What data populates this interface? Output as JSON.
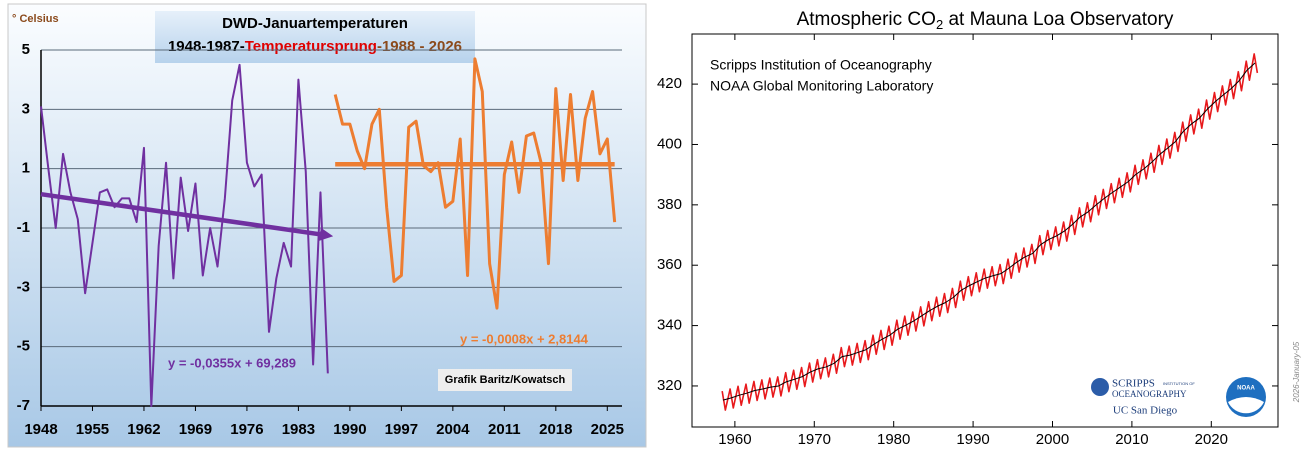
{
  "chart_data": [
    {
      "type": "line",
      "title": "DWD-Januartemperaturen",
      "subtitle_parts": [
        "1948-1987-",
        "Temperatursprung",
        "-1988 - 2026"
      ],
      "y_label": "° Celsius",
      "annotations": [
        "y = -0,0355x + 69,289",
        "y = -0,0008x + 2,8144",
        "Grafik Baritz/Kowatsch"
      ],
      "xlim": [
        1948,
        2027
      ],
      "xticks": [
        1948,
        1955,
        1962,
        1969,
        1976,
        1983,
        1990,
        1997,
        2004,
        2011,
        2018,
        2025
      ],
      "ylim": [
        -7,
        5
      ],
      "yticks": [
        -7,
        -5,
        -3,
        -1,
        1,
        3,
        5
      ],
      "grid": true,
      "series": [
        {
          "color": "#7030a0",
          "line_width": 2,
          "x": [
            1948,
            1949,
            1950,
            1951,
            1952,
            1953,
            1954,
            1955,
            1956,
            1957,
            1958,
            1959,
            1960,
            1961,
            1962,
            1963,
            1964,
            1965,
            1966,
            1967,
            1968,
            1969,
            1970,
            1971,
            1972,
            1973,
            1974,
            1975,
            1976,
            1977,
            1978,
            1979,
            1980,
            1981,
            1982,
            1983,
            1984,
            1985,
            1986,
            1987
          ],
          "values": [
            3.1,
            1.0,
            -1.0,
            1.5,
            0.2,
            -0.7,
            -3.2,
            -1.5,
            0.2,
            0.3,
            -0.3,
            0.0,
            0.0,
            -0.8,
            1.7,
            -7.0,
            -1.6,
            1.2,
            -2.7,
            0.7,
            -1.1,
            0.5,
            -2.6,
            -1.0,
            -2.3,
            0.0,
            3.3,
            4.5,
            1.2,
            0.4,
            0.8,
            -4.5,
            -2.7,
            -1.5,
            -2.3,
            4.0,
            0.9,
            -5.6,
            0.2,
            -5.9
          ]
        },
        {
          "color": "#ed7d31",
          "line_width": 3,
          "x": [
            1988,
            1989,
            1990,
            1991,
            1992,
            1993,
            1994,
            1995,
            1996,
            1997,
            1998,
            1999,
            2000,
            2001,
            2002,
            2003,
            2004,
            2005,
            2006,
            2007,
            2008,
            2009,
            2010,
            2011,
            2012,
            2013,
            2014,
            2015,
            2016,
            2017,
            2018,
            2019,
            2020,
            2021,
            2022,
            2023,
            2024,
            2025,
            2026
          ],
          "values": [
            3.5,
            2.5,
            2.5,
            1.6,
            1.0,
            2.5,
            3.0,
            -0.3,
            -2.8,
            -2.6,
            2.4,
            2.6,
            1.1,
            0.9,
            1.2,
            -0.3,
            -0.1,
            2.0,
            -2.6,
            4.7,
            3.6,
            -2.2,
            -3.7,
            0.8,
            1.9,
            0.2,
            2.1,
            2.2,
            1.2,
            -2.2,
            3.7,
            0.6,
            3.5,
            0.6,
            2.7,
            3.6,
            1.5,
            2.0,
            -0.8
          ]
        }
      ],
      "trendlines": [
        {
          "color": "#7030a0",
          "x": [
            1948,
            1987
          ],
          "values": [
            0.14,
            -1.25
          ],
          "arrow": true
        },
        {
          "color": "#ed7d31",
          "x": [
            1988,
            2026
          ],
          "values": [
            1.15,
            1.15
          ],
          "arrow": false
        }
      ]
    },
    {
      "type": "line",
      "title_parts": [
        "Atmospheric CO",
        "2",
        " at Mauna Loa Observatory"
      ],
      "sources": [
        "Scripps Institution of Oceanography",
        "NOAA Global Monitoring Laboratory"
      ],
      "date_label": "2026-January-05",
      "logos": {
        "scripps": "SCRIPPS",
        "institution": "INSTITUTION OF",
        "oceanography": "OCEANOGRAPHY",
        "ucsd": "UC San Diego",
        "noaa": "NOAA"
      },
      "xlim": [
        1954.6,
        2028.4
      ],
      "xticks": [
        1960,
        1970,
        1980,
        1990,
        2000,
        2010,
        2020
      ],
      "ylim": [
        306.4,
        436.6
      ],
      "yticks": [
        320,
        340,
        360,
        380,
        400,
        420
      ],
      "grid": false,
      "series": [
        {
          "color": "#e8191c",
          "line_width": 1.6,
          "x": [
            1958.4,
            1958.8,
            1959.4,
            1959.8,
            1960.4,
            1960.8,
            1961.4,
            1961.8,
            1962.4,
            1962.8,
            1963.4,
            1963.8,
            1964.4,
            1964.8,
            1965.4,
            1965.8,
            1966.4,
            1966.8,
            1967.4,
            1967.8,
            1968.4,
            1968.8,
            1969.4,
            1969.8,
            1970.4,
            1970.8,
            1971.4,
            1971.8,
            1972.4,
            1972.8,
            1973.4,
            1973.8,
            1974.4,
            1974.8,
            1975.4,
            1975.8,
            1976.4,
            1976.8,
            1977.4,
            1977.8,
            1978.4,
            1978.8,
            1979.4,
            1979.8,
            1980.4,
            1980.8,
            1981.4,
            1981.8,
            1982.4,
            1982.8,
            1983.4,
            1983.8,
            1984.4,
            1984.8,
            1985.4,
            1985.8,
            1986.4,
            1986.8,
            1987.4,
            1987.8,
            1988.4,
            1988.8,
            1989.4,
            1989.8,
            1990.4,
            1990.8,
            1991.4,
            1991.8,
            1992.4,
            1992.8,
            1993.4,
            1993.8,
            1994.4,
            1994.8,
            1995.4,
            1995.8,
            1996.4,
            1996.8,
            1997.4,
            1997.8,
            1998.4,
            1998.8,
            1999.4,
            1999.8,
            2000.4,
            2000.8,
            2001.4,
            2001.8,
            2002.4,
            2002.8,
            2003.4,
            2003.8,
            2004.4,
            2004.8,
            2005.4,
            2005.8,
            2006.4,
            2006.8,
            2007.4,
            2007.8,
            2008.4,
            2008.8,
            2009.4,
            2009.8,
            2010.4,
            2010.8,
            2011.4,
            2011.8,
            2012.4,
            2012.8,
            2013.4,
            2013.8,
            2014.4,
            2014.8,
            2015.4,
            2015.8,
            2016.4,
            2016.8,
            2017.4,
            2017.8,
            2018.4,
            2018.8,
            2019.4,
            2019.8,
            2020.4,
            2020.8,
            2021.4,
            2021.8,
            2022.4,
            2022.8,
            2023.4,
            2023.8,
            2024.4,
            2024.8,
            2025.4,
            2025.8
          ],
          "values": [
            318.3,
            312.0,
            319.0,
            312.7,
            319.9,
            313.6,
            320.6,
            314.3,
            321.5,
            315.2,
            322.0,
            315.7,
            322.6,
            316.3,
            323.0,
            316.7,
            324.4,
            318.1,
            325.2,
            318.9,
            326.1,
            319.8,
            327.6,
            321.3,
            328.7,
            322.4,
            329.3,
            323.0,
            330.5,
            324.2,
            332.7,
            326.4,
            333.2,
            326.9,
            334.1,
            327.8,
            335.0,
            328.7,
            336.8,
            330.5,
            338.4,
            332.1,
            339.8,
            333.5,
            341.8,
            335.5,
            343.1,
            336.8,
            344.5,
            338.2,
            346.2,
            339.9,
            347.9,
            341.6,
            349.4,
            343.1,
            350.6,
            344.3,
            352.3,
            346.0,
            354.7,
            348.4,
            356.2,
            349.9,
            357.5,
            351.2,
            358.7,
            352.4,
            359.5,
            353.2,
            360.2,
            353.9,
            362.0,
            355.7,
            364.0,
            357.7,
            365.7,
            359.4,
            366.9,
            360.6,
            369.8,
            363.5,
            371.5,
            365.2,
            372.7,
            366.4,
            374.3,
            368.0,
            376.5,
            370.2,
            379.0,
            372.7,
            380.7,
            374.4,
            383.0,
            376.7,
            385.1,
            378.8,
            387.0,
            380.7,
            388.8,
            382.5,
            390.6,
            384.3,
            393.1,
            386.8,
            394.9,
            388.6,
            397.1,
            390.8,
            399.7,
            393.4,
            401.8,
            395.5,
            404.0,
            397.7,
            407.4,
            401.1,
            409.8,
            403.5,
            411.7,
            405.4,
            414.7,
            408.4,
            417.2,
            410.9,
            419.4,
            413.1,
            421.5,
            415.2,
            424.1,
            417.8,
            427.6,
            421.3,
            430.0,
            423.7
          ]
        },
        {
          "color": "#000000",
          "line_width": 1,
          "x": [
            1958.5,
            1959.5,
            1960.5,
            1961.5,
            1962.5,
            1963.5,
            1964.5,
            1965.5,
            1966.5,
            1967.5,
            1968.5,
            1969.5,
            1970.5,
            1971.5,
            1972.5,
            1973.5,
            1974.5,
            1975.5,
            1976.5,
            1977.5,
            1978.5,
            1979.5,
            1980.5,
            1981.5,
            1982.5,
            1983.5,
            1984.5,
            1985.5,
            1986.5,
            1987.5,
            1988.5,
            1989.5,
            1990.5,
            1991.5,
            1992.5,
            1993.5,
            1994.5,
            1995.5,
            1996.5,
            1997.5,
            1998.5,
            1999.5,
            2000.5,
            2001.5,
            2002.5,
            2003.5,
            2004.5,
            2005.5,
            2006.5,
            2007.5,
            2008.5,
            2009.5,
            2010.5,
            2011.5,
            2012.5,
            2013.5,
            2014.5,
            2015.5,
            2016.5,
            2017.5,
            2018.5,
            2019.5,
            2020.5,
            2021.5,
            2022.5,
            2023.5,
            2024.5,
            2025.5
          ],
          "values": [
            315.3,
            316.0,
            316.9,
            317.6,
            318.5,
            319.0,
            319.6,
            320.0,
            321.4,
            322.2,
            323.1,
            324.6,
            325.7,
            326.3,
            327.5,
            329.7,
            330.2,
            331.1,
            332.0,
            333.8,
            335.4,
            336.8,
            338.8,
            340.1,
            341.5,
            343.2,
            344.9,
            346.4,
            347.6,
            349.3,
            351.7,
            353.2,
            354.5,
            355.7,
            356.5,
            357.2,
            359.0,
            361.0,
            362.7,
            363.9,
            366.8,
            368.5,
            369.7,
            371.3,
            373.5,
            376.0,
            377.7,
            380.0,
            382.1,
            384.0,
            385.8,
            387.6,
            390.1,
            391.9,
            394.1,
            396.7,
            398.8,
            401.0,
            404.4,
            406.8,
            408.7,
            411.7,
            414.2,
            416.4,
            418.5,
            421.1,
            424.6,
            427.0
          ]
        }
      ]
    }
  ]
}
